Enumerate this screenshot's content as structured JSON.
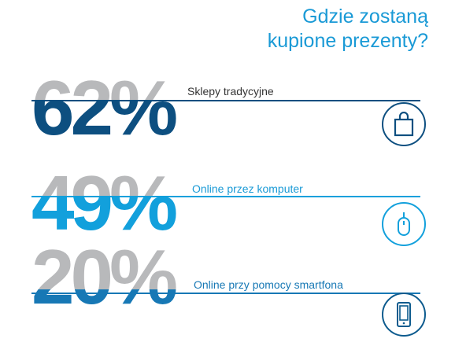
{
  "title": {
    "line1": "Gdzie zostaną",
    "line2": "kupione prezenty?"
  },
  "colors": {
    "title": "#1a9ad6",
    "gray": "#b8b9bb",
    "navy": "#0d4f80",
    "blue": "#12a0dc",
    "mid_blue": "#1778b5"
  },
  "chart_data": {
    "type": "bar",
    "title": "Gdzie zostaną kupione prezenty?",
    "categories": [
      "Sklepy tradycyjne",
      "Online przez komputer",
      "Online przy pomocy smartfona"
    ],
    "values": [
      62,
      49,
      20
    ],
    "value_labels": [
      "62%",
      "49%",
      "20%"
    ],
    "unit": "%",
    "icons": [
      "shopping-bag-icon",
      "computer-mouse-icon",
      "smartphone-icon"
    ],
    "fill_colors": [
      "#0d4f80",
      "#12a0dc",
      "#1778b5"
    ]
  }
}
